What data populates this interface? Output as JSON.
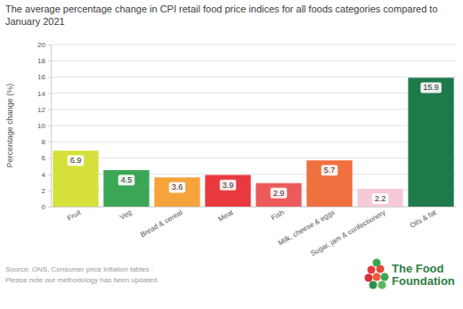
{
  "chart_data": {
    "type": "bar",
    "title": "The average percentage change in CPI retail food price indices for all foods categories compared to January 2021",
    "y_label": "Percentage change (%)",
    "categories": [
      "Fruit",
      "Veg",
      "Bread & cereal",
      "Meat",
      "Fish",
      "Milk, cheese & eggs",
      "Sugar, jam & confectionery",
      "Oils & fat"
    ],
    "values": [
      6.9,
      4.5,
      3.6,
      3.9,
      2.9,
      5.7,
      2.2,
      15.9
    ],
    "colors": [
      "#d6e03a",
      "#3ba655",
      "#f5a33a",
      "#e9383e",
      "#ee5a5c",
      "#f0703f",
      "#f6c9d9",
      "#1f7a4b"
    ],
    "ylim": [
      0,
      20
    ],
    "yticks": [
      0,
      2,
      4,
      6,
      8,
      10,
      12,
      14,
      16,
      18,
      20
    ],
    "grid": true,
    "data_labels": true,
    "annotations": [
      "Source: ONS, Consumer price inflation tables ·",
      "Please note our methodology has been updated",
      "The Food Foundation"
    ]
  }
}
